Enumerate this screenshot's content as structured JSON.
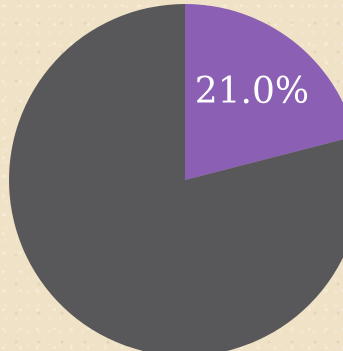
{
  "chart_data": {
    "type": "pie",
    "values": [
      21.0,
      79.0
    ],
    "labels": [
      "21.0%",
      ""
    ],
    "colors": [
      "#8a5fb4",
      "#58585a"
    ],
    "start_angle_deg": 0,
    "direction": "clockwise"
  }
}
